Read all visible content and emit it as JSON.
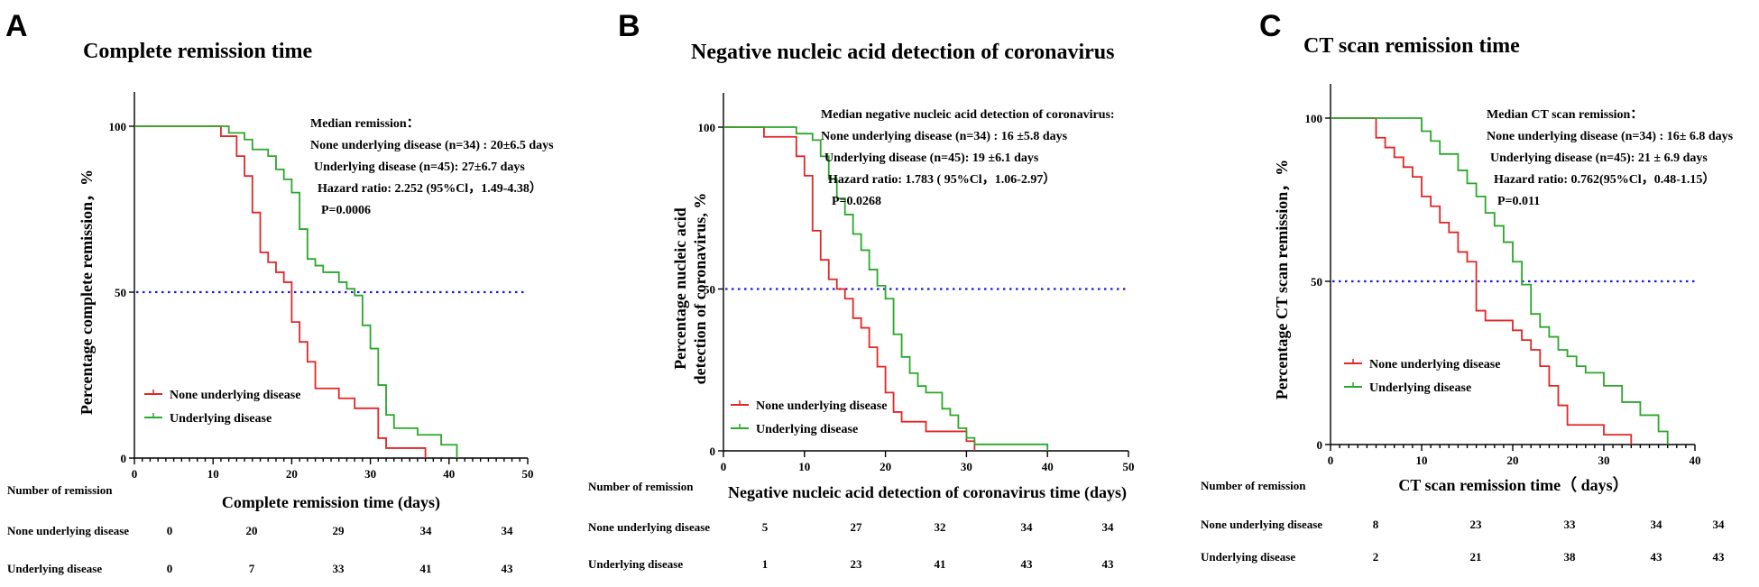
{
  "chart_data": [
    {
      "type": "line",
      "panel_label": "A",
      "title": "Complete remission time",
      "xlabel": "Complete remission time (days)",
      "ylabel": "Percentage complete remission，%",
      "xlim": [
        0,
        50
      ],
      "ylim": [
        0,
        100
      ],
      "x_ticks": [
        0,
        10,
        20,
        30,
        40,
        50
      ],
      "y_ticks": [
        0,
        50,
        100
      ],
      "reference_line": 50,
      "annotation": [
        "Median remission：",
        "None underlying disease (n=34) : 20±6.5 days",
        "Underlying disease (n=45): 27±6.7 days",
        "Hazard ratio: 2.252 (95%Cl，1.49-4.38）",
        "P=0.0006"
      ],
      "legend_position": "bottom-left",
      "series": [
        {
          "name": "None underlying disease",
          "color": "#e32626",
          "x": [
            0,
            11,
            13,
            14,
            15,
            16,
            17,
            18,
            19,
            20,
            21,
            22,
            23,
            24,
            26,
            28,
            30,
            31,
            32,
            34,
            37
          ],
          "y": [
            100,
            97,
            91,
            85,
            74,
            62,
            59,
            56,
            53,
            41,
            35,
            29,
            21,
            21,
            18,
            15,
            15,
            6,
            3,
            3,
            0
          ]
        },
        {
          "name": "Underlying disease",
          "color": "#2aa82a",
          "x": [
            0,
            11,
            12,
            14,
            15,
            16,
            17,
            18,
            19,
            20,
            21,
            22,
            23,
            24,
            25,
            26,
            27,
            28,
            29,
            30,
            31,
            32,
            33,
            35,
            36,
            38,
            39,
            41
          ],
          "y": [
            100,
            100,
            98,
            96,
            93,
            93,
            91,
            87,
            84,
            80,
            69,
            60,
            58,
            56,
            56,
            53,
            51,
            49,
            40,
            33,
            22,
            13,
            9,
            9,
            7,
            7,
            4,
            0
          ]
        }
      ],
      "risk_table": {
        "header": "Number of remission",
        "rows": [
          {
            "label": "None underlying disease",
            "values": [
              "0",
              "20",
              "29",
              "34",
              "34"
            ]
          },
          {
            "label": "Underlying disease",
            "values": [
              "0",
              "7",
              "33",
              "41",
              "43"
            ]
          }
        ]
      }
    },
    {
      "type": "line",
      "panel_label": "B",
      "title": "Negative nucleic acid detection of coronavirus",
      "xlabel": "Negative nucleic acid detection of coronavirus time (days)",
      "ylabel": "Percentage nucleic acid detection of coronavirus, %",
      "ylabel_lines": [
        "Percentage  nucleic acid",
        "detection of coronavirus,  %"
      ],
      "xlim": [
        0,
        50
      ],
      "ylim": [
        0,
        100
      ],
      "x_ticks": [
        0,
        10,
        20,
        30,
        40,
        50
      ],
      "y_ticks": [
        0,
        50,
        100
      ],
      "reference_line": 50,
      "annotation": [
        "Median negative nucleic acid detection of coronavirus:",
        "None underlying disease (n=34) : 16 ±5.8 days",
        "Underlying disease (n=45): 19 ±6.1 days",
        "Hazard ratio: 1.783 ( 95%Cl，1.06-2.97）",
        "P=0.0268"
      ],
      "legend_position": "bottom-left",
      "series": [
        {
          "name": "None underlying disease",
          "color": "#e32626",
          "x": [
            0,
            5,
            9,
            10,
            11,
            12,
            13,
            14,
            15,
            16,
            17,
            18,
            19,
            20,
            21,
            22,
            23,
            25,
            30,
            31
          ],
          "y": [
            100,
            97,
            91,
            85,
            68,
            59,
            53,
            50,
            47,
            41,
            38,
            32,
            26,
            18,
            12,
            9,
            9,
            6,
            3,
            0
          ]
        },
        {
          "name": "Underlying disease",
          "color": "#2aa82a",
          "x": [
            0,
            9,
            11,
            12,
            13,
            14,
            15,
            16,
            17,
            18,
            19,
            20,
            21,
            22,
            23,
            24,
            25,
            27,
            28,
            29,
            30,
            31,
            40
          ],
          "y": [
            100,
            98,
            96,
            91,
            84,
            78,
            73,
            67,
            62,
            56,
            51,
            47,
            36,
            29,
            24,
            20,
            18,
            13,
            11,
            7,
            4,
            2,
            0
          ]
        }
      ],
      "risk_table": {
        "header": "Number of remission",
        "rows": [
          {
            "label": "None underlying disease",
            "values": [
              "5",
              "27",
              "32",
              "34",
              "34"
            ]
          },
          {
            "label": "Underlying disease",
            "values": [
              "1",
              "23",
              "41",
              "43",
              "43"
            ]
          }
        ]
      }
    },
    {
      "type": "line",
      "panel_label": "C",
      "title": "CT scan remission time",
      "xlabel": "CT scan remission time（ days）",
      "ylabel": "Percentage CT scan remission，%",
      "xlim": [
        0,
        40
      ],
      "ylim": [
        0,
        100
      ],
      "x_ticks": [
        0,
        10,
        20,
        30,
        40
      ],
      "y_ticks": [
        0,
        50,
        100
      ],
      "reference_line": 50,
      "annotation": [
        "Median CT scan remission：",
        "None underlying disease (n=34) : 16± 6.8 days",
        "Underlying disease (n=45): 21 ± 6.9 days",
        "Hazard ratio: 0.762(95%Cl，0.48-1.15）",
        "P=0.011"
      ],
      "legend_position": "bottom-left",
      "series": [
        {
          "name": "None underlying disease",
          "color": "#e32626",
          "x": [
            0,
            5,
            6,
            7,
            8,
            9,
            10,
            11,
            12,
            13,
            14,
            15,
            16,
            17,
            20,
            21,
            22,
            23,
            24,
            25,
            26,
            30,
            33
          ],
          "y": [
            100,
            94,
            91,
            88,
            85,
            82,
            76,
            73,
            68,
            65,
            59,
            56,
            41,
            38,
            35,
            32,
            29,
            24,
            18,
            12,
            6,
            3,
            0
          ]
        },
        {
          "name": "Underlying disease",
          "color": "#2aa82a",
          "x": [
            0,
            10,
            11,
            12,
            14,
            15,
            16,
            17,
            18,
            19,
            20,
            21,
            22,
            23,
            24,
            25,
            26,
            27,
            28,
            30,
            32,
            34,
            36,
            37
          ],
          "y": [
            100,
            96,
            93,
            89,
            84,
            80,
            76,
            71,
            67,
            62,
            56,
            49,
            40,
            36,
            33,
            29,
            27,
            24,
            22,
            18,
            13,
            9,
            4,
            0
          ]
        }
      ],
      "risk_table": {
        "header": "Number of remission",
        "rows": [
          {
            "label": "None underlying disease",
            "values": [
              "8",
              "23",
              "33",
              "34",
              "34"
            ]
          },
          {
            "label": "Underlying disease",
            "values": [
              "2",
              "21",
              "38",
              "43",
              "43"
            ]
          }
        ]
      }
    }
  ]
}
